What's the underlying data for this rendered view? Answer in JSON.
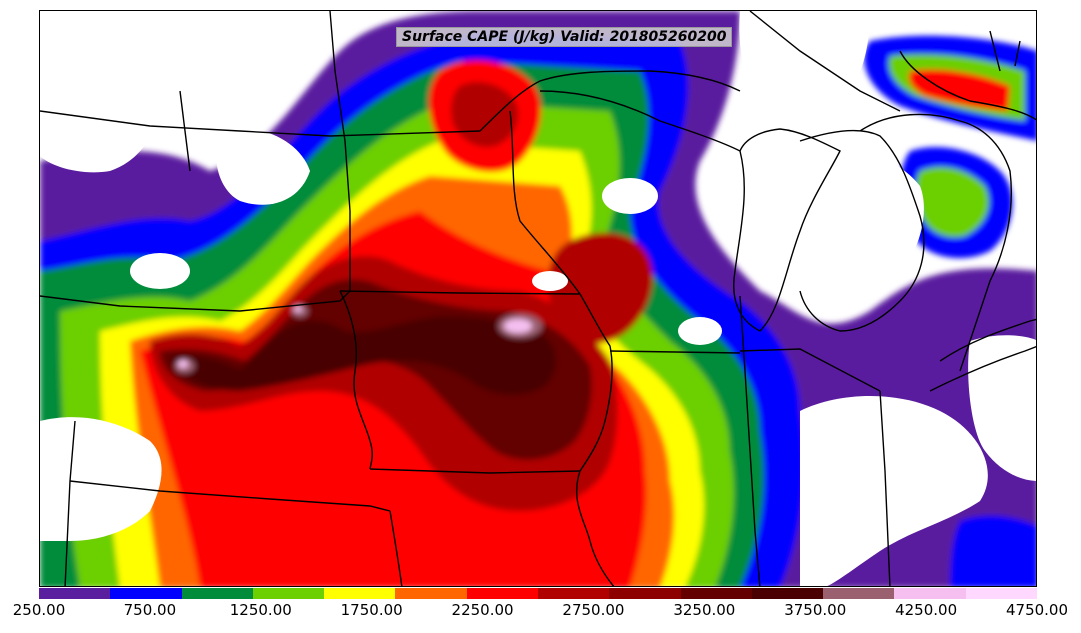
{
  "title": "Surface CAPE (J/kg) Valid: 201805260200",
  "colorbar": {
    "colors": [
      "#5a1f9f",
      "#0000ff",
      "#008c3a",
      "#6ccf00",
      "#ffff00",
      "#ff6600",
      "#ff0000",
      "#b00000",
      "#8c0000",
      "#640000",
      "#4a0000",
      "#9a6070",
      "#f5c0f0",
      "#ffd8ff"
    ],
    "tick_labels": [
      "250.00",
      "750.00",
      "1250.00",
      "1750.00",
      "2250.00",
      "2750.00",
      "3250.00",
      "3750.00",
      "4250.00",
      "4750.00"
    ],
    "min": 250,
    "max": 4750,
    "step": 500
  },
  "map": {
    "field": "Surface CAPE",
    "units": "J/kg",
    "region": "Central United States / Upper Midwest"
  }
}
